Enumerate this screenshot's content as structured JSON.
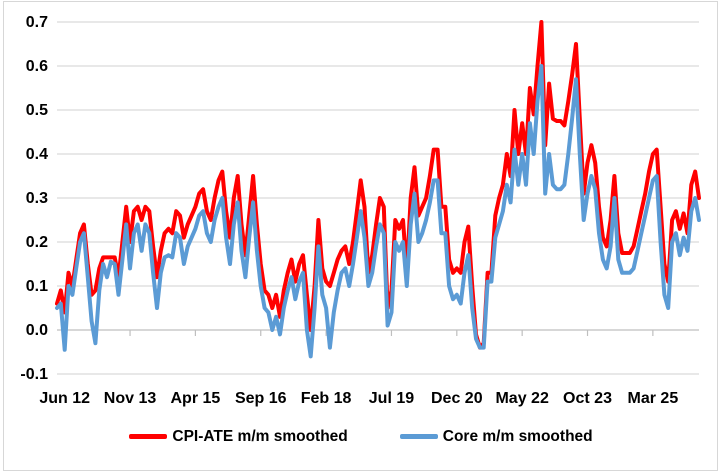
{
  "chart_data": {
    "type": "line",
    "title": "",
    "xlabel": "",
    "ylabel": "",
    "grid": true,
    "legend_position": "bottom",
    "ylim": [
      -0.1,
      0.7
    ],
    "y_tick_step": 0.1,
    "y_tick_labels": [
      "-0.1",
      "0.0",
      "0.1",
      "0.2",
      "0.3",
      "0.4",
      "0.5",
      "0.6",
      "0.7"
    ],
    "x_tick_labels": [
      "Jun 12",
      "Nov 13",
      "Apr 15",
      "Sep 16",
      "Feb 18",
      "Jul 19",
      "Dec 20",
      "May 22",
      "Oct 23",
      "Mar 25"
    ],
    "x_tick_indices": [
      2,
      19,
      36,
      53,
      70,
      87,
      104,
      121,
      138,
      155
    ],
    "x_frequency": "monthly",
    "series": [
      {
        "name": "CPI-ATE m/m smoothed",
        "color": "#ff0000",
        "values": [
          0.06,
          0.09,
          0.04,
          0.13,
          0.1,
          0.16,
          0.22,
          0.24,
          0.15,
          0.08,
          0.09,
          0.14,
          0.165,
          0.165,
          0.165,
          0.165,
          0.12,
          0.2,
          0.28,
          0.2,
          0.27,
          0.28,
          0.25,
          0.28,
          0.27,
          0.19,
          0.12,
          0.18,
          0.22,
          0.23,
          0.22,
          0.27,
          0.26,
          0.21,
          0.24,
          0.26,
          0.28,
          0.31,
          0.32,
          0.27,
          0.25,
          0.3,
          0.34,
          0.36,
          0.27,
          0.21,
          0.3,
          0.35,
          0.24,
          0.17,
          0.26,
          0.35,
          0.24,
          0.15,
          0.09,
          0.08,
          0.05,
          0.08,
          0.03,
          0.09,
          0.13,
          0.16,
          0.11,
          0.15,
          0.17,
          0.08,
          0.0,
          0.1,
          0.25,
          0.14,
          0.11,
          0.1,
          0.13,
          0.16,
          0.18,
          0.19,
          0.15,
          0.2,
          0.27,
          0.34,
          0.28,
          0.13,
          0.17,
          0.24,
          0.3,
          0.28,
          0.05,
          0.09,
          0.25,
          0.23,
          0.25,
          0.13,
          0.3,
          0.37,
          0.26,
          0.28,
          0.3,
          0.35,
          0.41,
          0.41,
          0.28,
          0.28,
          0.16,
          0.13,
          0.14,
          0.13,
          0.2,
          0.235,
          0.1,
          -0.01,
          -0.04,
          -0.03,
          0.13,
          0.13,
          0.26,
          0.3,
          0.33,
          0.4,
          0.35,
          0.5,
          0.4,
          0.47,
          0.4,
          0.55,
          0.49,
          0.6,
          0.7,
          0.42,
          0.56,
          0.48,
          0.475,
          0.475,
          0.465,
          0.52,
          0.58,
          0.65,
          0.48,
          0.31,
          0.38,
          0.42,
          0.38,
          0.28,
          0.21,
          0.19,
          0.25,
          0.35,
          0.22,
          0.175,
          0.175,
          0.175,
          0.19,
          0.23,
          0.27,
          0.31,
          0.36,
          0.4,
          0.41,
          0.28,
          0.15,
          0.11,
          0.25,
          0.27,
          0.23,
          0.265,
          0.22,
          0.33,
          0.36,
          0.3
        ]
      },
      {
        "name": "Core m/m smoothed",
        "color": "#5b9bd5",
        "values": [
          0.05,
          0.06,
          -0.045,
          0.1,
          0.08,
          0.14,
          0.2,
          0.22,
          0.12,
          0.02,
          -0.03,
          0.09,
          0.15,
          0.12,
          0.155,
          0.15,
          0.08,
          0.16,
          0.24,
          0.14,
          0.22,
          0.24,
          0.18,
          0.24,
          0.22,
          0.13,
          0.05,
          0.13,
          0.165,
          0.17,
          0.165,
          0.22,
          0.21,
          0.15,
          0.19,
          0.21,
          0.23,
          0.26,
          0.27,
          0.22,
          0.2,
          0.25,
          0.28,
          0.3,
          0.21,
          0.15,
          0.24,
          0.29,
          0.18,
          0.12,
          0.21,
          0.29,
          0.18,
          0.1,
          0.05,
          0.04,
          0.0,
          0.03,
          -0.01,
          0.05,
          0.09,
          0.12,
          0.07,
          0.11,
          0.13,
          0.0,
          -0.06,
          0.05,
          0.19,
          0.08,
          0.05,
          -0.04,
          0.04,
          0.09,
          0.13,
          0.14,
          0.1,
          0.15,
          0.21,
          0.27,
          0.21,
          0.1,
          0.13,
          0.19,
          0.24,
          0.22,
          0.01,
          0.04,
          0.2,
          0.18,
          0.2,
          0.1,
          0.24,
          0.31,
          0.2,
          0.22,
          0.25,
          0.29,
          0.34,
          0.34,
          0.22,
          0.22,
          0.1,
          0.07,
          0.08,
          0.06,
          0.13,
          0.17,
          0.05,
          -0.02,
          -0.04,
          -0.04,
          0.11,
          0.11,
          0.21,
          0.24,
          0.27,
          0.33,
          0.29,
          0.41,
          0.33,
          0.4,
          0.33,
          0.47,
          0.4,
          0.52,
          0.6,
          0.31,
          0.4,
          0.33,
          0.32,
          0.32,
          0.33,
          0.4,
          0.48,
          0.57,
          0.4,
          0.25,
          0.31,
          0.35,
          0.32,
          0.22,
          0.16,
          0.14,
          0.19,
          0.3,
          0.16,
          0.13,
          0.13,
          0.13,
          0.14,
          0.18,
          0.22,
          0.26,
          0.3,
          0.34,
          0.35,
          0.2,
          0.08,
          0.05,
          0.2,
          0.22,
          0.17,
          0.21,
          0.18,
          0.27,
          0.3,
          0.25
        ]
      }
    ]
  },
  "colors": {
    "background": "#ffffff",
    "frame_border": "#d7d7d7",
    "gridline": "#d9d9d9",
    "axis_line": "#bfbfbf",
    "tick_mark": "#bfbfbf",
    "label_text": "#000000"
  }
}
